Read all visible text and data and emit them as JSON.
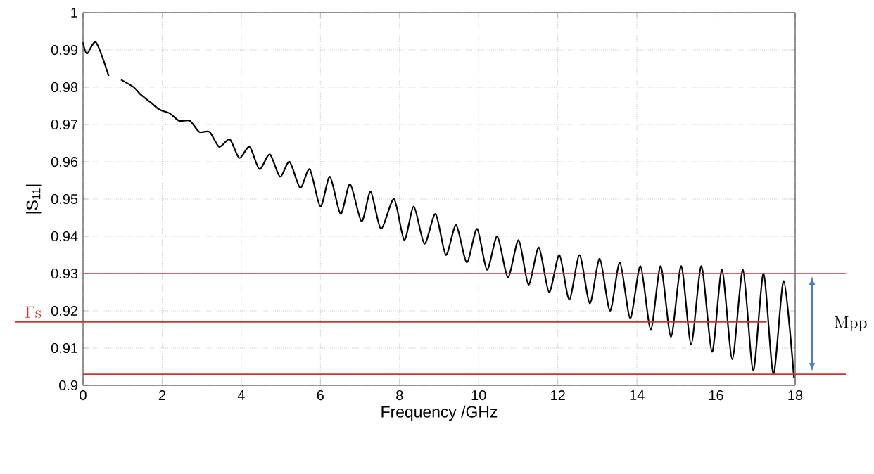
{
  "chart_data": {
    "type": "line",
    "xlabel": "Frequency /GHz",
    "ylabel": "|S$_{11}$|",
    "x": [
      0,
      0.1,
      0.33,
      0.65,
      0.8,
      0.96,
      1.28,
      1.46,
      1.7,
      1.93,
      2.19,
      2.43,
      2.7,
      2.94,
      3.2,
      3.44,
      3.71,
      3.95,
      4.21,
      4.46,
      4.72,
      4.98,
      5.22,
      5.49,
      5.73,
      6.0,
      6.24,
      6.51,
      6.75,
      7.04,
      7.27,
      7.53,
      7.86,
      8.12,
      8.36,
      8.63,
      8.91,
      9.17,
      9.43,
      9.7,
      9.96,
      10.21,
      10.47,
      10.74,
      11.01,
      11.26,
      11.52,
      11.78,
      12.04,
      12.29,
      12.55,
      12.81,
      13.06,
      13.32,
      13.57,
      13.83,
      14.09,
      14.35,
      14.6,
      14.86,
      15.12,
      15.37,
      15.63,
      15.9,
      16.15,
      16.41,
      16.68,
      16.94,
      17.2,
      17.45,
      17.71,
      17.97
    ],
    "series": [
      {
        "color": "#000000",
        "values": [
          0.992,
          0.989,
          0.992,
          0.983,
          null,
          0.982,
          0.98,
          0.978,
          0.976,
          0.974,
          0.973,
          0.971,
          0.971,
          0.968,
          0.968,
          0.964,
          0.966,
          0.961,
          0.964,
          0.958,
          0.962,
          0.956,
          0.96,
          0.953,
          0.958,
          0.948,
          0.956,
          0.946,
          0.954,
          0.944,
          0.952,
          0.942,
          0.95,
          0.939,
          0.948,
          0.938,
          0.946,
          0.935,
          0.943,
          0.933,
          0.942,
          0.931,
          0.94,
          0.929,
          0.939,
          0.927,
          0.937,
          0.925,
          0.935,
          0.923,
          0.935,
          0.922,
          0.934,
          0.92,
          0.933,
          0.918,
          0.932,
          0.915,
          0.932,
          0.913,
          0.932,
          0.911,
          0.932,
          0.909,
          0.931,
          0.907,
          0.931,
          0.904,
          0.93,
          0.903,
          0.928,
          0.902
        ]
      }
    ],
    "xlim": [
      0,
      18
    ],
    "ylim": [
      0.9,
      1
    ],
    "xticks": [
      0,
      2,
      4,
      6,
      8,
      10,
      12,
      14,
      16,
      18
    ],
    "yticks": [
      0.9,
      0.91,
      0.92,
      0.93,
      0.94,
      0.95,
      0.96,
      0.97,
      0.98,
      0.99,
      1
    ],
    "grid": true,
    "line_style": "solid",
    "marker": "none",
    "ref_lines": [
      {
        "axis": "y",
        "value": 0.917,
        "label": "Γs",
        "color": "#cc3333"
      },
      {
        "axis": "y",
        "value": 0.93,
        "color": "#cc3333"
      },
      {
        "axis": "y",
        "value": 0.903,
        "color": "#cc3333"
      }
    ],
    "annotations": [
      "Mpp"
    ]
  }
}
